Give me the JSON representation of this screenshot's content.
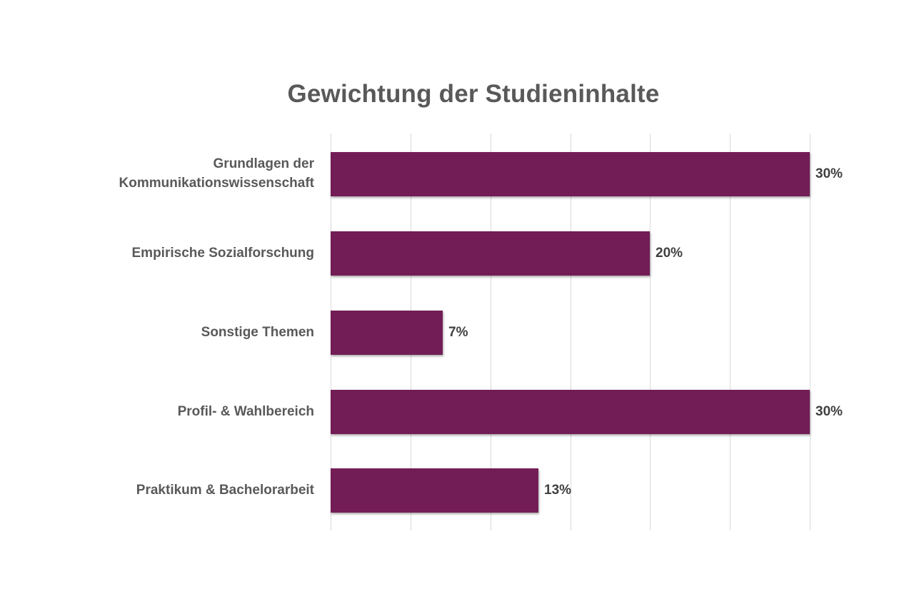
{
  "title": "Gewichtung der Studieninhalte",
  "colors": {
    "bar": "#731D57",
    "grid": "#D9D9D9",
    "text": "#595959"
  },
  "categories": [
    {
      "label_line1": "Grundlagen der",
      "label_line2": "Kommunikationswissenschaft",
      "value": 30,
      "value_label": "30%"
    },
    {
      "label_line1": "Empirische Sozialforschung",
      "label_line2": "",
      "value": 20,
      "value_label": "20%"
    },
    {
      "label_line1": "Sonstige Themen",
      "label_line2": "",
      "value": 7,
      "value_label": "7%"
    },
    {
      "label_line1": "Profil- & Wahlbereich",
      "label_line2": "",
      "value": 30,
      "value_label": "30%"
    },
    {
      "label_line1": "Praktikum & Bachelorarbeit",
      "label_line2": "",
      "value": 13,
      "value_label": "13%"
    }
  ],
  "chart_data": {
    "type": "bar",
    "orientation": "horizontal",
    "title": "Gewichtung der Studieninhalte",
    "categories": [
      "Grundlagen der Kommunikationswissenschaft",
      "Empirische Sozialforschung",
      "Sonstige Themen",
      "Profil- & Wahlbereich",
      "Praktikum & Bachelorarbeit"
    ],
    "values": [
      30,
      20,
      7,
      30,
      13
    ],
    "value_labels": [
      "30%",
      "20%",
      "7%",
      "30%",
      "13%"
    ],
    "unit": "%",
    "xlabel": "",
    "ylabel": "",
    "xlim": [
      0,
      30
    ],
    "grid": {
      "vertical": true,
      "step": 5
    },
    "legend": "none",
    "axis_tick_labels_shown": false
  }
}
